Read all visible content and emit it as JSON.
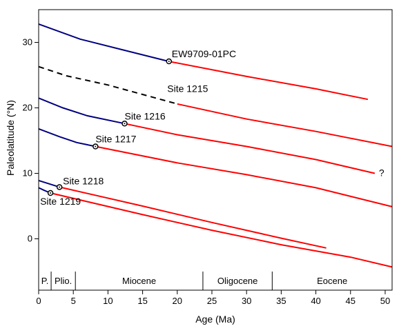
{
  "chart_data": {
    "type": "line",
    "xlabel": "Age (Ma)",
    "ylabel": "Paleolatitude (°N)",
    "xlim": [
      0,
      51
    ],
    "ylim": [
      -5,
      35
    ],
    "xticks": [
      0,
      5,
      10,
      15,
      20,
      25,
      30,
      35,
      40,
      45,
      50
    ],
    "yticks": [
      0,
      10,
      20,
      30
    ],
    "grid": false,
    "legend": "none",
    "colors": {
      "older_segment": "#ff0000",
      "younger_segment": "#000080",
      "dashed_segment": "#000000",
      "marker": "#000000"
    },
    "series": [
      {
        "label": "EW9709-01PC",
        "site_age": 18.8,
        "site_lat": 27.1,
        "x": [
          0,
          6,
          12,
          18.8
        ],
        "y": [
          32.8,
          30.5,
          28.9,
          27.1
        ],
        "red_x": [
          18.8,
          30,
          40,
          47.5
        ],
        "red_y": [
          27.1,
          24.8,
          22.9,
          21.3
        ],
        "dashed": false
      },
      {
        "label": "Site 1215",
        "site_age": null,
        "site_lat": null,
        "x": [
          0,
          4,
          10,
          20
        ],
        "y": [
          26.3,
          24.9,
          23.5,
          20.6
        ],
        "red_x": [
          20,
          30,
          40,
          51
        ],
        "red_y": [
          20.6,
          18.3,
          16.4,
          14.1
        ],
        "dashed": true
      },
      {
        "label": "Site 1216",
        "site_age": 12.4,
        "site_lat": 17.6,
        "x": [
          0,
          3.5,
          7,
          12.4
        ],
        "y": [
          21.5,
          20.0,
          18.8,
          17.6
        ],
        "red_x": [
          12.4,
          20,
          30,
          40,
          48.5
        ],
        "red_y": [
          17.6,
          15.9,
          14.1,
          12.1,
          10.0
        ],
        "dashed": false,
        "suffix": "?"
      },
      {
        "label": "Site 1217",
        "site_age": 8.2,
        "site_lat": 14.1,
        "x": [
          0,
          3,
          5.5,
          8.2
        ],
        "y": [
          16.8,
          15.6,
          14.7,
          14.1
        ],
        "red_x": [
          8.2,
          20,
          30,
          40,
          51
        ],
        "red_y": [
          14.1,
          11.6,
          9.8,
          7.8,
          4.9
        ],
        "dashed": false
      },
      {
        "label": "Site 1218",
        "site_age": 3.0,
        "site_lat": 7.9,
        "x": [
          0,
          1.5,
          3.0
        ],
        "y": [
          8.9,
          8.4,
          7.9
        ],
        "red_x": [
          3.0,
          15,
          25,
          35,
          41.5
        ],
        "red_y": [
          7.9,
          5.0,
          2.5,
          0.1,
          -1.4
        ],
        "dashed": false
      },
      {
        "label": "Site 1219",
        "site_age": 1.7,
        "site_lat": 7.0,
        "x": [
          0,
          0.8,
          1.7
        ],
        "y": [
          7.8,
          7.4,
          7.0
        ],
        "red_x": [
          1.7,
          15,
          25,
          35,
          45,
          51
        ],
        "red_y": [
          7.0,
          3.7,
          1.3,
          -0.9,
          -2.8,
          -4.3
        ],
        "dashed": false
      }
    ],
    "epochs": [
      {
        "name": "P.",
        "start": 0,
        "end": 1.8
      },
      {
        "name": "Plio.",
        "start": 1.8,
        "end": 5.3
      },
      {
        "name": "Miocene",
        "start": 5.3,
        "end": 23.7
      },
      {
        "name": "Oligocene",
        "start": 23.7,
        "end": 33.7
      },
      {
        "name": "Eocene",
        "start": 33.7,
        "end": 51
      }
    ]
  }
}
